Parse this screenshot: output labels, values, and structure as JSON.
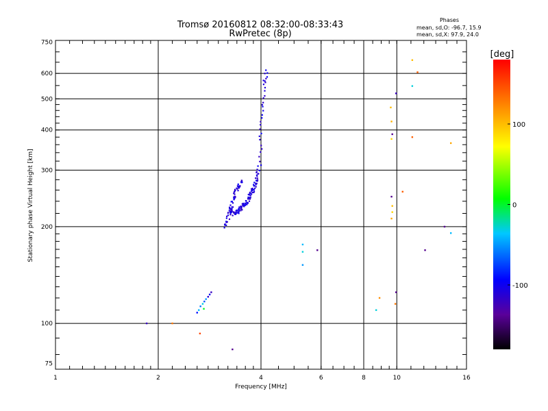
{
  "chart_data": {
    "type": "scatter",
    "title": "Tromsø 20160812 08:32:00-08:33:43",
    "subtitle": "RwPretec (8p)",
    "xlabel": "Frequency [MHz]",
    "ylabel": "Stationary phase Virtual Height [km]",
    "x_scale": "log",
    "y_scale": "log",
    "xlim": [
      1,
      16
    ],
    "ylim": [
      72,
      760
    ],
    "x_ticks": [
      1,
      2,
      4,
      6,
      8,
      10,
      16
    ],
    "x_tick_labels": [
      "1",
      "2",
      "4",
      "6",
      "8",
      "10",
      "16"
    ],
    "y_ticks": [
      75,
      100,
      200,
      300,
      400,
      500,
      600,
      750
    ],
    "y_tick_labels": [
      "75",
      "100",
      "200",
      "300",
      "400",
      "500",
      "600",
      "750"
    ],
    "grid": true,
    "stats": {
      "heading": "Phases",
      "line_o": "mean, sd,O: -96.7, 15.9",
      "line_x": "mean, sd,X:  97.9, 24.0"
    },
    "colorbar": {
      "label": "[deg]",
      "range": [
        -180,
        180
      ],
      "ticks": [
        -100,
        0,
        100
      ],
      "tick_labels": [
        "-100",
        "0",
        "100"
      ]
    },
    "curve_segments": [
      {
        "freq": [
          3.25,
          3.3,
          3.35,
          3.4,
          3.45,
          3.5,
          3.55,
          3.6,
          3.65,
          3.7,
          3.75,
          3.8,
          3.85,
          3.9,
          3.95,
          4.0,
          4.05,
          4.1,
          4.15
        ],
        "height": [
          228,
          222,
          218,
          222,
          225,
          228,
          232,
          236,
          240,
          248,
          255,
          262,
          272,
          285,
          305,
          380,
          470,
          560,
          620
        ]
      },
      {
        "freq": [
          3.15,
          3.2,
          3.25,
          3.3,
          3.35,
          3.4,
          3.45,
          3.5
        ],
        "height": [
          200,
          210,
          225,
          240,
          252,
          262,
          270,
          278
        ]
      }
    ],
    "points": [
      {
        "freq": 2.6,
        "height": 108,
        "phase": -90
      },
      {
        "freq": 2.63,
        "height": 110,
        "phase": -40
      },
      {
        "freq": 2.66,
        "height": 113,
        "phase": -60
      },
      {
        "freq": 2.7,
        "height": 115,
        "phase": -30
      },
      {
        "freq": 2.73,
        "height": 117,
        "phase": -70
      },
      {
        "freq": 2.76,
        "height": 119,
        "phase": -50
      },
      {
        "freq": 2.8,
        "height": 121,
        "phase": -110
      },
      {
        "freq": 2.83,
        "height": 123,
        "phase": -100
      },
      {
        "freq": 2.86,
        "height": 125,
        "phase": -120
      },
      {
        "freq": 2.72,
        "height": 111,
        "phase": 0
      },
      {
        "freq": 1.85,
        "height": 100,
        "phase": -120
      },
      {
        "freq": 2.2,
        "height": 100,
        "phase": 130
      },
      {
        "freq": 2.65,
        "height": 93,
        "phase": 150
      },
      {
        "freq": 3.3,
        "height": 83,
        "phase": -140
      },
      {
        "freq": 5.3,
        "height": 176,
        "phase": -40
      },
      {
        "freq": 5.3,
        "height": 167,
        "phase": -30
      },
      {
        "freq": 5.3,
        "height": 152,
        "phase": -50
      },
      {
        "freq": 5.85,
        "height": 169,
        "phase": -140
      },
      {
        "freq": 8.7,
        "height": 110,
        "phase": -30
      },
      {
        "freq": 8.9,
        "height": 120,
        "phase": 120
      },
      {
        "freq": 9.6,
        "height": 470,
        "phase": 100
      },
      {
        "freq": 9.65,
        "height": 425,
        "phase": 105
      },
      {
        "freq": 9.7,
        "height": 388,
        "phase": -140
      },
      {
        "freq": 9.65,
        "height": 375,
        "phase": 90
      },
      {
        "freq": 9.65,
        "height": 248,
        "phase": -140
      },
      {
        "freq": 9.7,
        "height": 232,
        "phase": 100
      },
      {
        "freq": 9.7,
        "height": 222,
        "phase": 90
      },
      {
        "freq": 9.65,
        "height": 212,
        "phase": 110
      },
      {
        "freq": 9.95,
        "height": 125,
        "phase": -140
      },
      {
        "freq": 9.9,
        "height": 115,
        "phase": 130
      },
      {
        "freq": 9.95,
        "height": 520,
        "phase": -120
      },
      {
        "freq": 10.4,
        "height": 257,
        "phase": 140
      },
      {
        "freq": 11.1,
        "height": 660,
        "phase": 100
      },
      {
        "freq": 11.5,
        "height": 605,
        "phase": 140
      },
      {
        "freq": 11.1,
        "height": 548,
        "phase": -30
      },
      {
        "freq": 11.1,
        "height": 380,
        "phase": 140
      },
      {
        "freq": 12.1,
        "height": 169,
        "phase": -140
      },
      {
        "freq": 13.8,
        "height": 200,
        "phase": -140
      },
      {
        "freq": 14.4,
        "height": 364,
        "phase": 110
      },
      {
        "freq": 14.4,
        "height": 191,
        "phase": -40
      }
    ]
  }
}
